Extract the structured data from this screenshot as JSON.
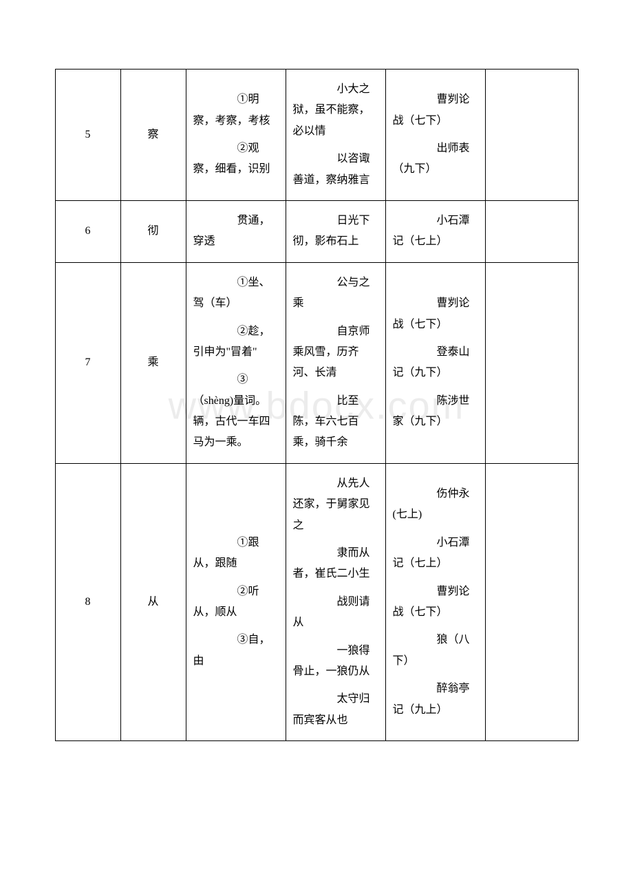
{
  "watermark": "www.bdocx.com",
  "rows": [
    {
      "num": "5",
      "char": "察",
      "meanings": [
        "　　①明察，考察，考核",
        "　　②观察，细看，识别"
      ],
      "examples": [
        "　　小大之狱，虽不能察，必以情",
        "　　以咨诹善道，察纳雅言"
      ],
      "sources": [
        "　　曹刿论战（七下）",
        "　　出师表（九下）"
      ]
    },
    {
      "num": "6",
      "char": "彻",
      "meanings": [
        "　　贯通，穿透"
      ],
      "examples": [
        "　　日光下彻，影布石上"
      ],
      "sources": [
        "　　小石潭记（七上）"
      ]
    },
    {
      "num": "7",
      "char": "乘",
      "meanings": [
        "　　①坐、驾（车）",
        "　　②趁，引申为\"冒着\"",
        "　　③（shèng)量词。辆，古代一车四马为一乘。"
      ],
      "examples": [
        "　　公与之乘",
        "　　自京师乘风雪，历齐河、长清",
        "　　比至陈，车六七百乘，骑千余"
      ],
      "sources": [
        "　　曹刿论战（七下）",
        "　　登泰山记（九下）",
        "　　陈涉世家（九下）"
      ]
    },
    {
      "num": "8",
      "char": "从",
      "meanings": [
        "　　①跟从，跟随",
        "　　②听从，顺从",
        "　　③自，由"
      ],
      "examples": [
        "　　从先人还家，于舅家见之",
        "　　隶而从者，崔氏二小生",
        "　　战则请从",
        "　　一狼得骨止，一狼仍从",
        "　　太守归而宾客从也"
      ],
      "sources": [
        "　　伤仲永(七上)",
        "　　小石潭记（七上）",
        "　　曹刿论战（七下）",
        "　　狼（八下）",
        "　　醉翁亭记（九上）"
      ]
    }
  ]
}
